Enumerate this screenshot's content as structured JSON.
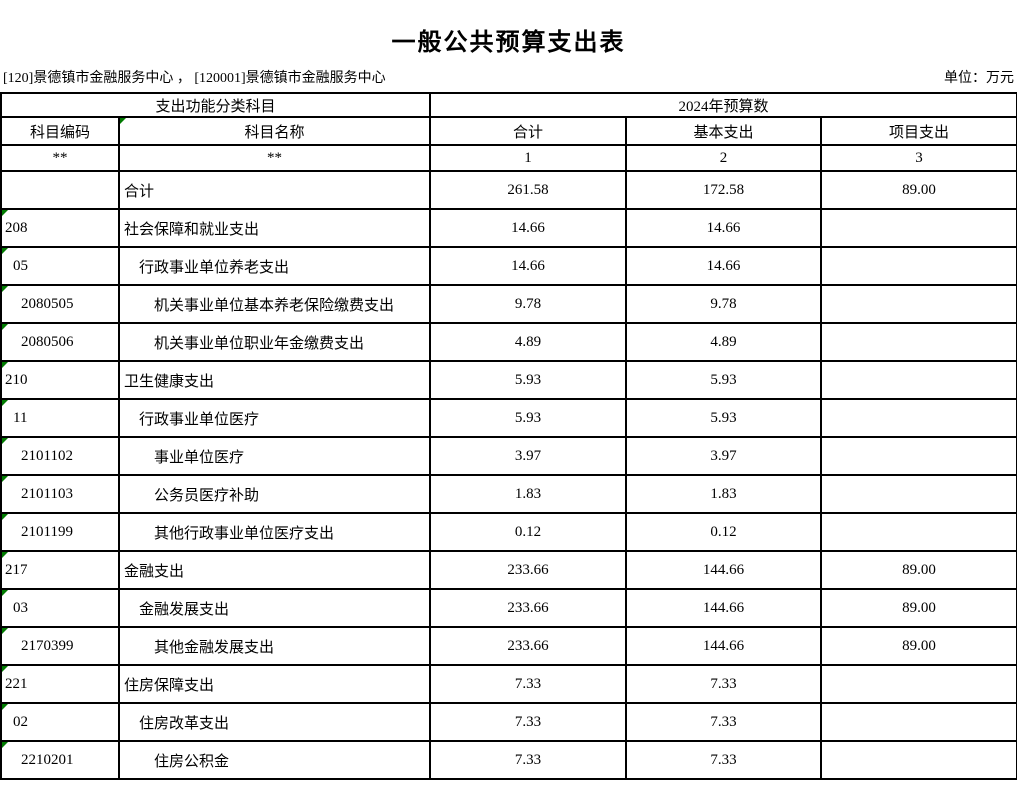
{
  "page": {
    "title": "一般公共预算支出表",
    "org_line": "[120]景德镇市金融服务中心 ， [120001]景德镇市金融服务中心",
    "unit_label": "单位：万元"
  },
  "table": {
    "group_headers": {
      "left": "支出功能分类科目",
      "right": "2024年预算数"
    },
    "columns": {
      "code": "科目编码",
      "name": "科目名称",
      "total": "合计",
      "basic": "基本支出",
      "project": "项目支出"
    },
    "marker_row": [
      "**",
      "**",
      "1",
      "2",
      "3"
    ],
    "rows": [
      {
        "code": "",
        "name": "合计",
        "level": 1,
        "total": "261.58",
        "basic": "172.58",
        "project": "89.00",
        "flag": false
      },
      {
        "code": "208",
        "name": "社会保障和就业支出",
        "level": 1,
        "total": "14.66",
        "basic": "14.66",
        "project": "",
        "flag": true
      },
      {
        "code": "05",
        "name": "行政事业单位养老支出",
        "level": 2,
        "total": "14.66",
        "basic": "14.66",
        "project": "",
        "flag": true
      },
      {
        "code": "2080505",
        "name": "机关事业单位基本养老保险缴费支出",
        "level": 3,
        "total": "9.78",
        "basic": "9.78",
        "project": "",
        "flag": true
      },
      {
        "code": "2080506",
        "name": "机关事业单位职业年金缴费支出",
        "level": 3,
        "total": "4.89",
        "basic": "4.89",
        "project": "",
        "flag": true
      },
      {
        "code": "210",
        "name": "卫生健康支出",
        "level": 1,
        "total": "5.93",
        "basic": "5.93",
        "project": "",
        "flag": true
      },
      {
        "code": "11",
        "name": "行政事业单位医疗",
        "level": 2,
        "total": "5.93",
        "basic": "5.93",
        "project": "",
        "flag": true
      },
      {
        "code": "2101102",
        "name": "事业单位医疗",
        "level": 3,
        "total": "3.97",
        "basic": "3.97",
        "project": "",
        "flag": true
      },
      {
        "code": "2101103",
        "name": "公务员医疗补助",
        "level": 3,
        "total": "1.83",
        "basic": "1.83",
        "project": "",
        "flag": true
      },
      {
        "code": "2101199",
        "name": "其他行政事业单位医疗支出",
        "level": 3,
        "total": "0.12",
        "basic": "0.12",
        "project": "",
        "flag": true
      },
      {
        "code": "217",
        "name": "金融支出",
        "level": 1,
        "total": "233.66",
        "basic": "144.66",
        "project": "89.00",
        "flag": true
      },
      {
        "code": "03",
        "name": "金融发展支出",
        "level": 2,
        "total": "233.66",
        "basic": "144.66",
        "project": "89.00",
        "flag": true
      },
      {
        "code": "2170399",
        "name": "其他金融发展支出",
        "level": 3,
        "total": "233.66",
        "basic": "144.66",
        "project": "89.00",
        "flag": true
      },
      {
        "code": "221",
        "name": "住房保障支出",
        "level": 1,
        "total": "7.33",
        "basic": "7.33",
        "project": "",
        "flag": true
      },
      {
        "code": "02",
        "name": "住房改革支出",
        "level": 2,
        "total": "7.33",
        "basic": "7.33",
        "project": "",
        "flag": true
      },
      {
        "code": "2210201",
        "name": "住房公积金",
        "level": 3,
        "total": "7.33",
        "basic": "7.33",
        "project": "",
        "flag": true
      }
    ]
  },
  "colors": {
    "flag_triangle": "#007A00",
    "border": "#000000",
    "background": "#FFFFFF"
  }
}
